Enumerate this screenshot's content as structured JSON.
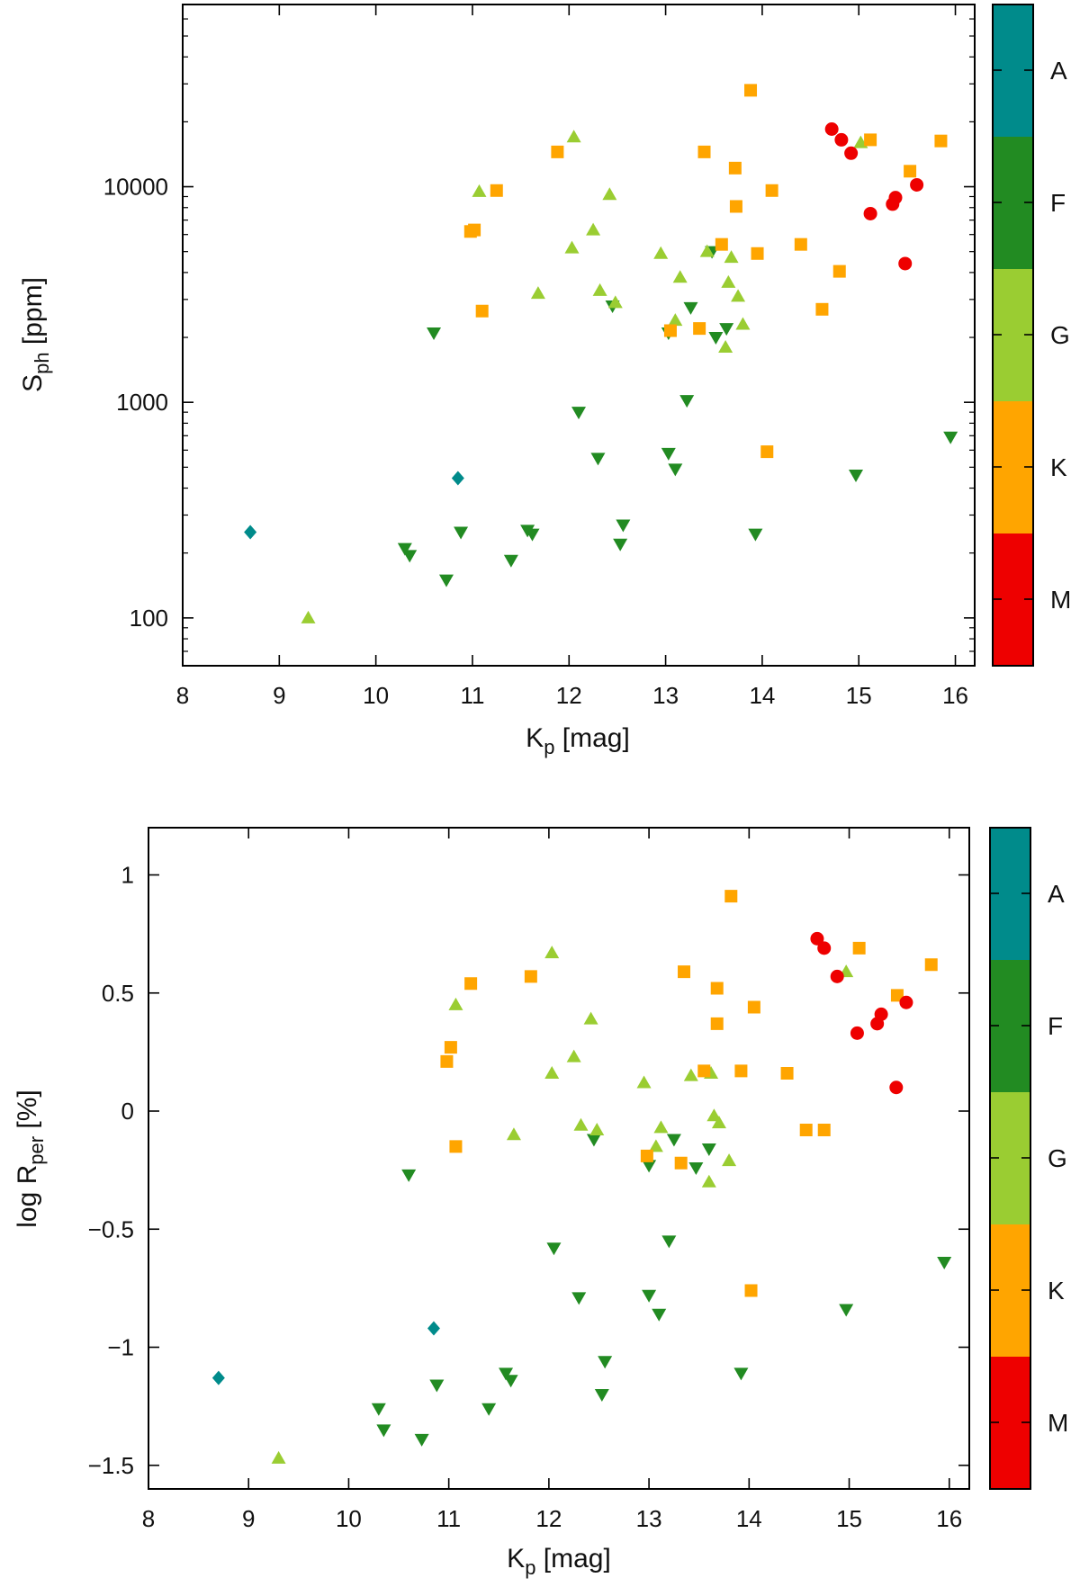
{
  "spectral_colors": {
    "A": "#008b8b",
    "F": "#228b22",
    "G": "#9acd32",
    "K": "#ffa500",
    "M": "#ee0000"
  },
  "colorbar": {
    "labels": [
      "A",
      "F",
      "G",
      "K",
      "M"
    ]
  },
  "chart_data": [
    {
      "type": "scatter",
      "xlabel": {
        "base": "K",
        "sub": "p",
        "rest": " [mag]"
      },
      "ylabel": {
        "base": "S",
        "sub": "ph",
        "rest": " [ppm]"
      },
      "yscale": "log",
      "xlim": [
        8,
        16.2
      ],
      "ylim": [
        60,
        70000
      ],
      "xticks": [
        8,
        9,
        10,
        11,
        12,
        13,
        14,
        15,
        16
      ],
      "xtick_labels": [
        "8",
        "9",
        "10",
        "11",
        "12",
        "13",
        "14",
        "15",
        "16"
      ],
      "yticks": [
        100,
        1000,
        10000
      ],
      "ytick_labels": [
        "100",
        "1000",
        "10000"
      ],
      "series": [
        {
          "name": "A",
          "marker": "diamond",
          "points": [
            [
              8.7,
              250
            ],
            [
              10.85,
              445
            ]
          ]
        },
        {
          "name": "F",
          "marker": "triangle-down",
          "points": [
            [
              10.3,
              210
            ],
            [
              10.35,
              195
            ],
            [
              10.6,
              2100
            ],
            [
              10.73,
              150
            ],
            [
              10.88,
              250
            ],
            [
              11.4,
              185
            ],
            [
              11.57,
              255
            ],
            [
              11.62,
              245
            ],
            [
              12.1,
              900
            ],
            [
              12.3,
              550
            ],
            [
              12.45,
              2800
            ],
            [
              12.53,
              220
            ],
            [
              12.56,
              270
            ],
            [
              13.03,
              580
            ],
            [
              13.03,
              2100
            ],
            [
              13.1,
              490
            ],
            [
              13.22,
              1020
            ],
            [
              13.26,
              2750
            ],
            [
              13.48,
              5000
            ],
            [
              13.52,
              2000
            ],
            [
              13.63,
              2200
            ],
            [
              13.93,
              245
            ],
            [
              14.97,
              460
            ],
            [
              15.95,
              690
            ]
          ]
        },
        {
          "name": "G",
          "marker": "triangle-up",
          "points": [
            [
              9.3,
              100
            ],
            [
              11.07,
              9500
            ],
            [
              11.68,
              3200
            ],
            [
              12.03,
              5200
            ],
            [
              12.05,
              17000
            ],
            [
              12.25,
              6300
            ],
            [
              12.32,
              3300
            ],
            [
              12.42,
              9200
            ],
            [
              12.48,
              2900
            ],
            [
              12.95,
              4900
            ],
            [
              13.1,
              2400
            ],
            [
              13.15,
              3800
            ],
            [
              13.43,
              5000
            ],
            [
              13.62,
              1800
            ],
            [
              13.65,
              3600
            ],
            [
              13.68,
              4700
            ],
            [
              13.75,
              3100
            ],
            [
              13.8,
              2300
            ],
            [
              15.02,
              16000
            ]
          ]
        },
        {
          "name": "K",
          "marker": "square",
          "points": [
            [
              10.98,
              6200
            ],
            [
              11.02,
              6300
            ],
            [
              11.1,
              2650
            ],
            [
              11.25,
              9600
            ],
            [
              11.88,
              14500
            ],
            [
              13.05,
              2150
            ],
            [
              13.35,
              2200
            ],
            [
              13.4,
              14500
            ],
            [
              13.58,
              5400
            ],
            [
              13.72,
              12200
            ],
            [
              13.73,
              8100
            ],
            [
              13.88,
              28000
            ],
            [
              13.95,
              4900
            ],
            [
              14.05,
              590
            ],
            [
              14.1,
              9600
            ],
            [
              14.4,
              5400
            ],
            [
              14.62,
              2700
            ],
            [
              14.8,
              4050
            ],
            [
              15.12,
              16500
            ],
            [
              15.53,
              11800
            ],
            [
              15.85,
              16300
            ]
          ]
        },
        {
          "name": "M",
          "marker": "circle",
          "points": [
            [
              14.72,
              18500
            ],
            [
              14.82,
              16500
            ],
            [
              14.92,
              14300
            ],
            [
              15.12,
              7500
            ],
            [
              15.35,
              8300
            ],
            [
              15.38,
              8900
            ],
            [
              15.48,
              4400
            ],
            [
              15.6,
              10200
            ]
          ]
        }
      ]
    },
    {
      "type": "scatter",
      "xlabel": {
        "base": "K",
        "sub": "p",
        "rest": " [mag]"
      },
      "ylabel": {
        "base": "log R",
        "sub": "per",
        "rest": " [%]"
      },
      "yscale": "linear",
      "xlim": [
        8,
        16.2
      ],
      "ylim": [
        -1.6,
        1.2
      ],
      "xticks": [
        8,
        9,
        10,
        11,
        12,
        13,
        14,
        15,
        16
      ],
      "xtick_labels": [
        "8",
        "9",
        "10",
        "11",
        "12",
        "13",
        "14",
        "15",
        "16"
      ],
      "yticks": [
        -1.5,
        -1,
        -0.5,
        0,
        0.5,
        1
      ],
      "ytick_labels": [
        "−1.5",
        "−1",
        "−0.5",
        "0",
        "0.5",
        "1"
      ],
      "series": [
        {
          "name": "A",
          "marker": "diamond",
          "points": [
            [
              8.7,
              -1.13
            ],
            [
              10.85,
              -0.92
            ]
          ]
        },
        {
          "name": "F",
          "marker": "triangle-down",
          "points": [
            [
              10.3,
              -1.26
            ],
            [
              10.35,
              -1.35
            ],
            [
              10.6,
              -0.27
            ],
            [
              10.73,
              -1.39
            ],
            [
              10.88,
              -1.16
            ],
            [
              11.4,
              -1.26
            ],
            [
              11.57,
              -1.11
            ],
            [
              11.62,
              -1.14
            ],
            [
              12.05,
              -0.58
            ],
            [
              12.3,
              -0.79
            ],
            [
              12.45,
              -0.12
            ],
            [
              12.53,
              -1.2
            ],
            [
              12.56,
              -1.06
            ],
            [
              13.0,
              -0.78
            ],
            [
              13.0,
              -0.23
            ],
            [
              13.1,
              -0.86
            ],
            [
              13.2,
              -0.55
            ],
            [
              13.25,
              -0.12
            ],
            [
              13.47,
              -0.24
            ],
            [
              13.6,
              -0.16
            ],
            [
              13.92,
              -1.11
            ],
            [
              14.97,
              -0.84
            ],
            [
              15.95,
              -0.64
            ]
          ]
        },
        {
          "name": "G",
          "marker": "triangle-up",
          "points": [
            [
              9.3,
              -1.47
            ],
            [
              11.07,
              0.45
            ],
            [
              11.65,
              -0.1
            ],
            [
              12.03,
              0.16
            ],
            [
              12.03,
              0.67
            ],
            [
              12.25,
              0.23
            ],
            [
              12.32,
              -0.06
            ],
            [
              12.42,
              0.39
            ],
            [
              12.48,
              -0.08
            ],
            [
              12.95,
              0.12
            ],
            [
              13.07,
              -0.15
            ],
            [
              13.12,
              -0.07
            ],
            [
              13.42,
              0.15
            ],
            [
              13.6,
              -0.3
            ],
            [
              13.62,
              0.16
            ],
            [
              13.65,
              -0.02
            ],
            [
              13.7,
              -0.05
            ],
            [
              13.8,
              -0.21
            ],
            [
              14.97,
              0.59
            ]
          ]
        },
        {
          "name": "K",
          "marker": "square",
          "points": [
            [
              10.98,
              0.21
            ],
            [
              11.02,
              0.27
            ],
            [
              11.07,
              -0.15
            ],
            [
              11.22,
              0.54
            ],
            [
              11.82,
              0.57
            ],
            [
              12.98,
              -0.19
            ],
            [
              13.32,
              -0.22
            ],
            [
              13.35,
              0.59
            ],
            [
              13.55,
              0.17
            ],
            [
              13.68,
              0.52
            ],
            [
              13.68,
              0.37
            ],
            [
              13.82,
              0.91
            ],
            [
              13.92,
              0.17
            ],
            [
              14.02,
              -0.76
            ],
            [
              14.05,
              0.44
            ],
            [
              14.38,
              0.16
            ],
            [
              14.57,
              -0.08
            ],
            [
              14.75,
              -0.08
            ],
            [
              15.1,
              0.69
            ],
            [
              15.48,
              0.49
            ],
            [
              15.82,
              0.62
            ]
          ]
        },
        {
          "name": "M",
          "marker": "circle",
          "points": [
            [
              14.68,
              0.73
            ],
            [
              14.75,
              0.69
            ],
            [
              14.88,
              0.57
            ],
            [
              15.08,
              0.33
            ],
            [
              15.28,
              0.37
            ],
            [
              15.32,
              0.41
            ],
            [
              15.47,
              0.1
            ],
            [
              15.57,
              0.46
            ]
          ]
        }
      ]
    }
  ]
}
